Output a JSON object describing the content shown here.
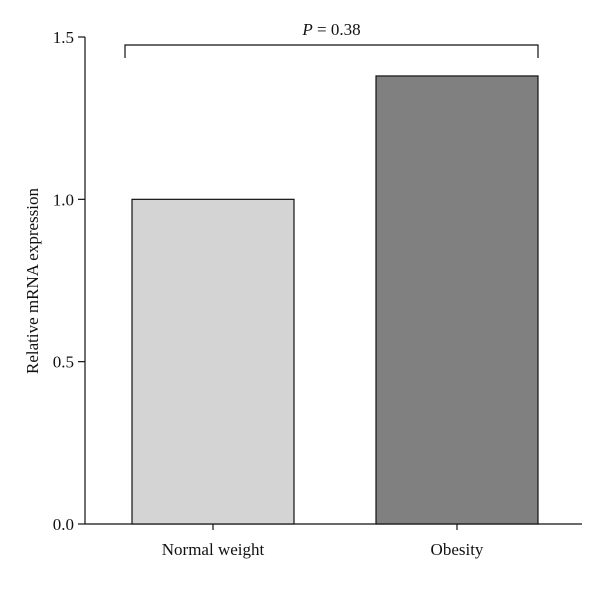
{
  "chart_data": {
    "type": "bar",
    "categories": [
      "Normal weight",
      "Obesity"
    ],
    "values": [
      1.0,
      1.38
    ],
    "bar_colors": [
      "#d4d4d4",
      "#808080"
    ],
    "xlabel": "",
    "ylabel": "Relative mRNA expression",
    "ylim": [
      0,
      1.5
    ],
    "yticks": [
      0.0,
      0.5,
      1.0,
      1.5
    ],
    "ytick_labels": [
      "0.0",
      "0.5",
      "1.0",
      "1.5"
    ],
    "grid": false,
    "annotation": {
      "symbol": "P",
      "text": " = 0.38",
      "spans_categories": [
        "Normal weight",
        "Obesity"
      ]
    }
  }
}
